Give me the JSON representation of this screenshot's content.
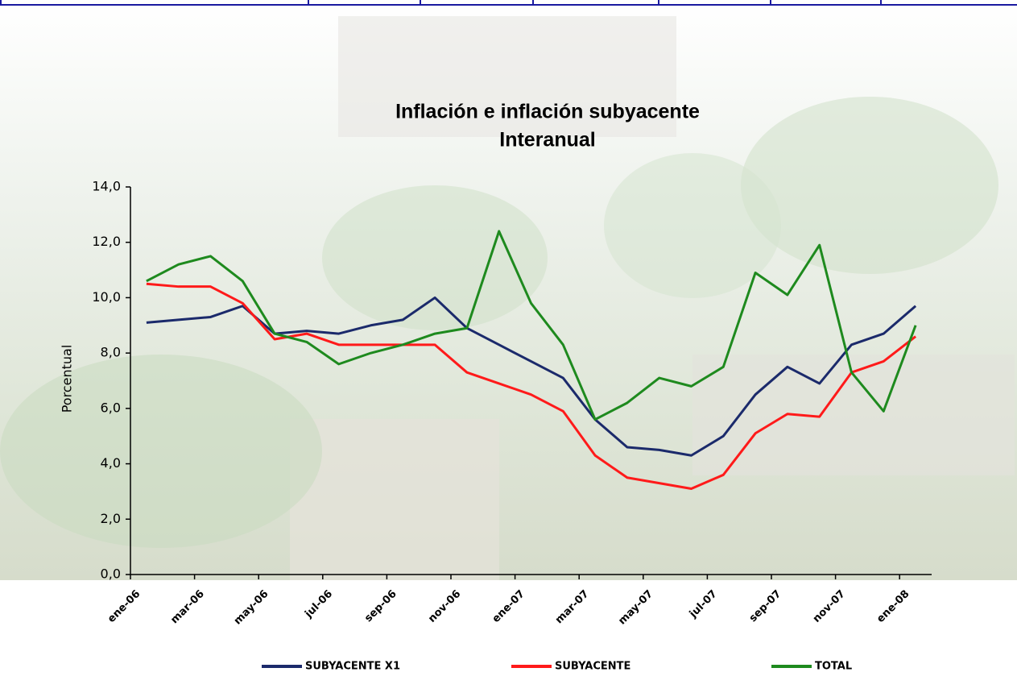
{
  "chart_data": {
    "type": "line",
    "title": "Inflación e inflación subyacente",
    "subtitle": "Interanual",
    "y_label": "Porcentual",
    "categories": [
      "ene-06",
      null,
      "mar-06",
      null,
      "may-06",
      null,
      "jul-06",
      null,
      "sep-06",
      null,
      "nov-06",
      null,
      "ene-07",
      null,
      "mar-07",
      null,
      "may-07",
      null,
      "jul-07",
      null,
      "sep-07",
      null,
      "nov-07",
      null,
      "ene-08"
    ],
    "series": [
      {
        "name": "SUBYACENTE X1",
        "color": "#1b2a6b",
        "values": [
          9.1,
          9.2,
          9.3,
          9.7,
          8.7,
          8.8,
          8.7,
          9.0,
          9.2,
          10.0,
          8.9,
          8.3,
          7.7,
          7.1,
          5.6,
          4.6,
          4.5,
          4.3,
          5.0,
          6.5,
          7.5,
          6.9,
          8.3,
          8.7,
          9.7
        ]
      },
      {
        "name": "SUBYACENTE",
        "color": "#ff1a1a",
        "values": [
          10.5,
          10.4,
          10.4,
          9.8,
          8.5,
          8.7,
          8.3,
          8.3,
          8.3,
          8.3,
          7.3,
          6.9,
          6.5,
          5.9,
          4.3,
          3.5,
          3.3,
          3.1,
          3.6,
          5.1,
          5.8,
          5.7,
          7.3,
          7.7,
          8.6
        ]
      },
      {
        "name": "TOTAL",
        "color": "#1e8a1e",
        "values": [
          10.6,
          11.2,
          11.5,
          10.6,
          8.7,
          8.4,
          7.6,
          8.0,
          8.3,
          8.7,
          8.9,
          12.4,
          9.8,
          8.3,
          5.6,
          6.2,
          7.1,
          6.8,
          7.5,
          10.9,
          10.1,
          11.9,
          7.3,
          5.9,
          9.0
        ]
      }
    ],
    "ylim": [
      0,
      14
    ],
    "yticks": [
      {
        "value": 0,
        "label": "0,0"
      },
      {
        "value": 2,
        "label": "2,0"
      },
      {
        "value": 4,
        "label": "4,0"
      },
      {
        "value": 6,
        "label": "6,0"
      },
      {
        "value": 8,
        "label": "8,0"
      },
      {
        "value": 10,
        "label": "10,0"
      },
      {
        "value": 12,
        "label": "12,0"
      },
      {
        "value": 14,
        "label": "14,0"
      }
    ],
    "grid": false,
    "legend": "bottom"
  }
}
